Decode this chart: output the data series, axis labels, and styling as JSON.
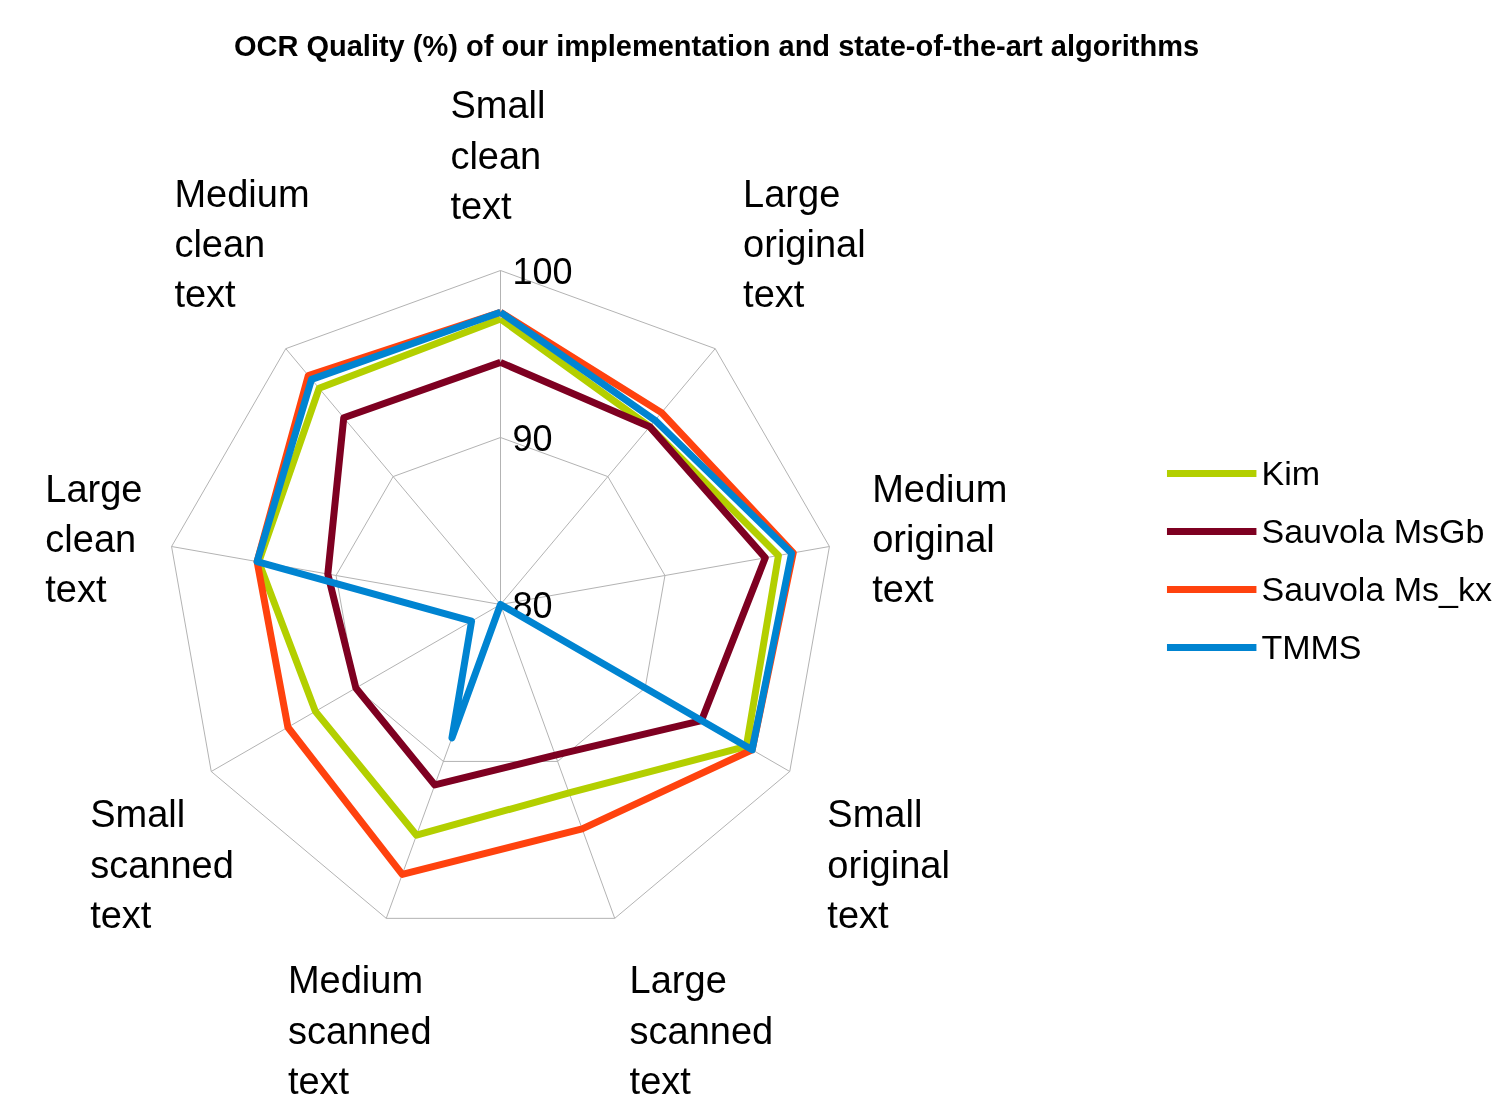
{
  "chart_data": {
    "type": "radar",
    "title": "OCR Quality (%) of our implementation and state-of-the-art algorithms",
    "categories": [
      "Small clean text",
      "Large original text",
      "Medium original text",
      "Small original text",
      "Large scanned text",
      "Medium scanned text",
      "Small scanned text",
      "Large clean text",
      "Medium clean text"
    ],
    "ylim": [
      80,
      100
    ],
    "yticks": [
      80,
      90,
      100
    ],
    "grid": true,
    "legend": "right",
    "line_style": "solid",
    "marker": "none",
    "series": [
      {
        "name": "Kim",
        "color": "#b3cf00",
        "values": [
          97.1,
          93.9,
          96.9,
          97.0,
          92.0,
          94.7,
          92.8,
          94.7,
          96.9
        ]
      },
      {
        "name": "Sauvola MsGb",
        "color": "#7e0021",
        "values": [
          94.5,
          93.9,
          96.1,
          93.9,
          89.6,
          91.5,
          90.0,
          90.5,
          94.6
        ]
      },
      {
        "name": "Sauvola Ms_kx",
        "color": "#ff420e",
        "values": [
          97.5,
          95.0,
          97.8,
          97.4,
          94.3,
          97.2,
          94.7,
          94.8,
          97.9
        ]
      },
      {
        "name": "TMMS",
        "color": "#0084d1",
        "values": [
          97.5,
          94.4,
          97.7,
          97.4,
          80.0,
          88.5,
          82.0,
          94.8,
          97.6
        ]
      }
    ]
  }
}
